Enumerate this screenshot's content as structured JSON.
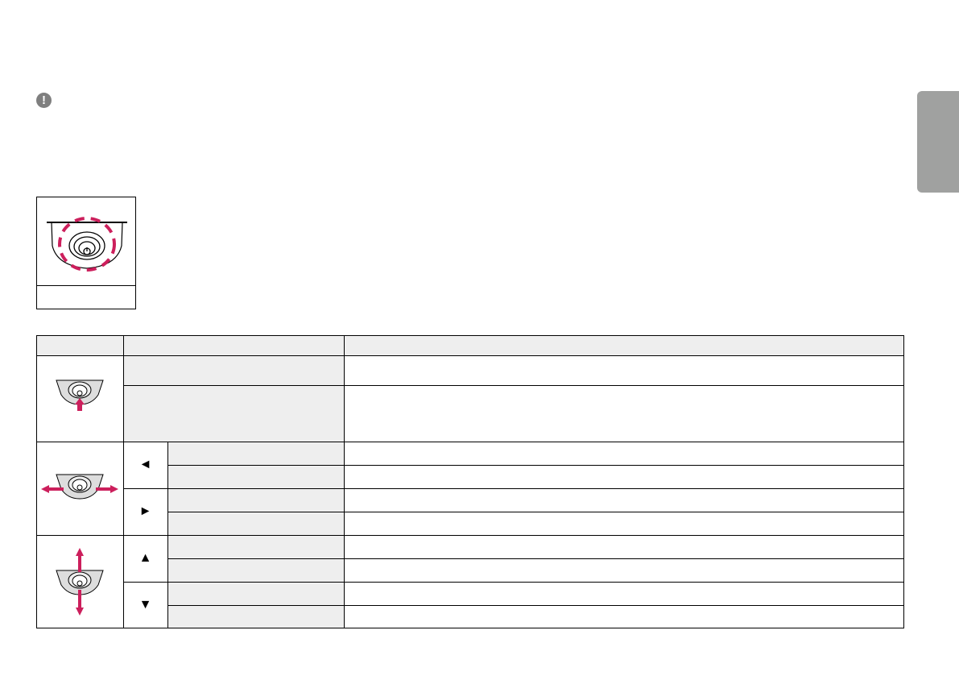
{
  "side_tab": {
    "color": "#a0a1a0"
  },
  "note": {
    "icon": "exclamation-icon",
    "symbol": "!"
  },
  "figure": {
    "icon": "joystick-button-icon",
    "highlight_color": "#cc1f5c",
    "caption": ""
  },
  "table": {
    "headers": [
      "",
      "",
      ""
    ],
    "accent_color": "#cc1f5c",
    "rows": {
      "press": [
        {
          "label": "",
          "desc": ""
        },
        {
          "label": "",
          "desc": ""
        }
      ],
      "left": {
        "arrow": "◄",
        "items": [
          {
            "label": "",
            "desc": ""
          },
          {
            "label": "",
            "desc": ""
          }
        ]
      },
      "right": {
        "arrow": "►",
        "items": [
          {
            "label": "",
            "desc": ""
          },
          {
            "label": "",
            "desc": ""
          }
        ]
      },
      "up": {
        "arrow": "▲",
        "items": [
          {
            "label": "",
            "desc": ""
          },
          {
            "label": "",
            "desc": ""
          }
        ]
      },
      "down": {
        "arrow": "▼",
        "items": [
          {
            "label": "",
            "desc": ""
          },
          {
            "label": "",
            "desc": ""
          }
        ]
      }
    }
  }
}
